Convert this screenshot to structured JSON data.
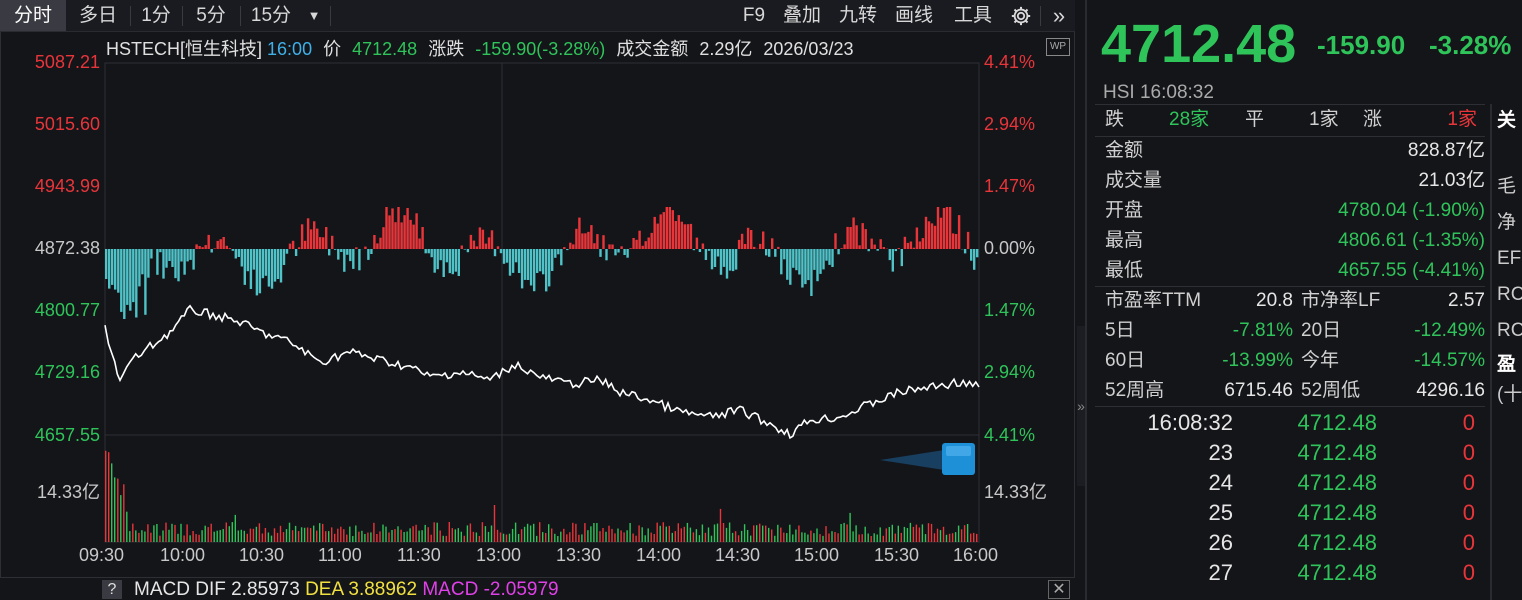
{
  "toolbar": {
    "periods": [
      "分时",
      "多日",
      "1分",
      "5分",
      "15分"
    ],
    "right_items": [
      "F9",
      "叠加",
      "九转",
      "画线",
      "工具"
    ]
  },
  "info": {
    "code": "HSTECH[恒生科技]",
    "time": "16:00",
    "price_label": "价",
    "price": "4712.48",
    "change_label": "涨跌",
    "change": "-159.90(-3.28%)",
    "turnover_label": "成交金额",
    "turnover": "2.29亿",
    "date": "2026/03/23",
    "wp_label": "WP"
  },
  "y_axis_left": [
    "5087.21",
    "5015.60",
    "4943.99",
    "4872.38",
    "4800.77",
    "4729.16",
    "4657.55"
  ],
  "y_axis_right": [
    "4.41%",
    "2.94%",
    "1.47%",
    "0.00%",
    "1.47%",
    "2.94%",
    "4.41%"
  ],
  "volume_label": "14.33亿",
  "x_axis": [
    "09:30",
    "10:00",
    "10:30",
    "11:00",
    "11:30",
    "13:00",
    "13:30",
    "14:00",
    "14:30",
    "15:00",
    "15:30",
    "16:00"
  ],
  "macd": {
    "help": "?",
    "dif_label": "MACD DIF",
    "dif": "2.85973",
    "dea_label": "DEA",
    "dea": "3.88962",
    "macd_label": "MACD",
    "macd": "-2.05979"
  },
  "quote": {
    "price": "4712.48",
    "change": "-159.90",
    "pct": "-3.28%",
    "index": "HSI",
    "time": "16:08:32"
  },
  "breadth": {
    "down_label": "跌",
    "down": "28家",
    "flat_label": "平",
    "flat": "1家",
    "up_label": "涨",
    "up": "1家"
  },
  "stats": [
    {
      "label": "金额",
      "value": "828.87亿"
    },
    {
      "label": "成交量",
      "value": "21.03亿"
    },
    {
      "label": "开盘",
      "value": "4780.04 (-1.90%)"
    },
    {
      "label": "最高",
      "value": "4806.61 (-1.35%)"
    },
    {
      "label": "最低",
      "value": "4657.55 (-4.41%)"
    }
  ],
  "ratios": [
    {
      "l1": "市盈率TTM",
      "v1": "20.8",
      "l2": "市净率LF",
      "v2": "2.57"
    },
    {
      "l1": "5日",
      "v1": "-7.81%",
      "l2": "20日",
      "v2": "-12.49%"
    },
    {
      "l1": "60日",
      "v1": "-13.99%",
      "l2": "今年",
      "v2": "-14.57%"
    },
    {
      "l1": "52周高",
      "v1": "6715.46",
      "l2": "52周低",
      "v2": "4296.16"
    }
  ],
  "ticks": [
    {
      "time": "16:08:32",
      "price": "4712.48",
      "vol": "0"
    },
    {
      "time": "23",
      "price": "4712.48",
      "vol": "0"
    },
    {
      "time": "24",
      "price": "4712.48",
      "vol": "0"
    },
    {
      "time": "25",
      "price": "4712.48",
      "vol": "0"
    },
    {
      "time": "26",
      "price": "4712.48",
      "vol": "0"
    },
    {
      "time": "27",
      "price": "4712.48",
      "vol": "0"
    }
  ],
  "side_labels": [
    "关",
    "毛",
    "净",
    "EF",
    "RC",
    "RC",
    "盈",
    "(十"
  ],
  "colors": {
    "up": "#e8353a",
    "down": "#2fc45a",
    "bg": "#141519",
    "line": "#ffffff",
    "bar_down": "#4fc3c8"
  }
}
